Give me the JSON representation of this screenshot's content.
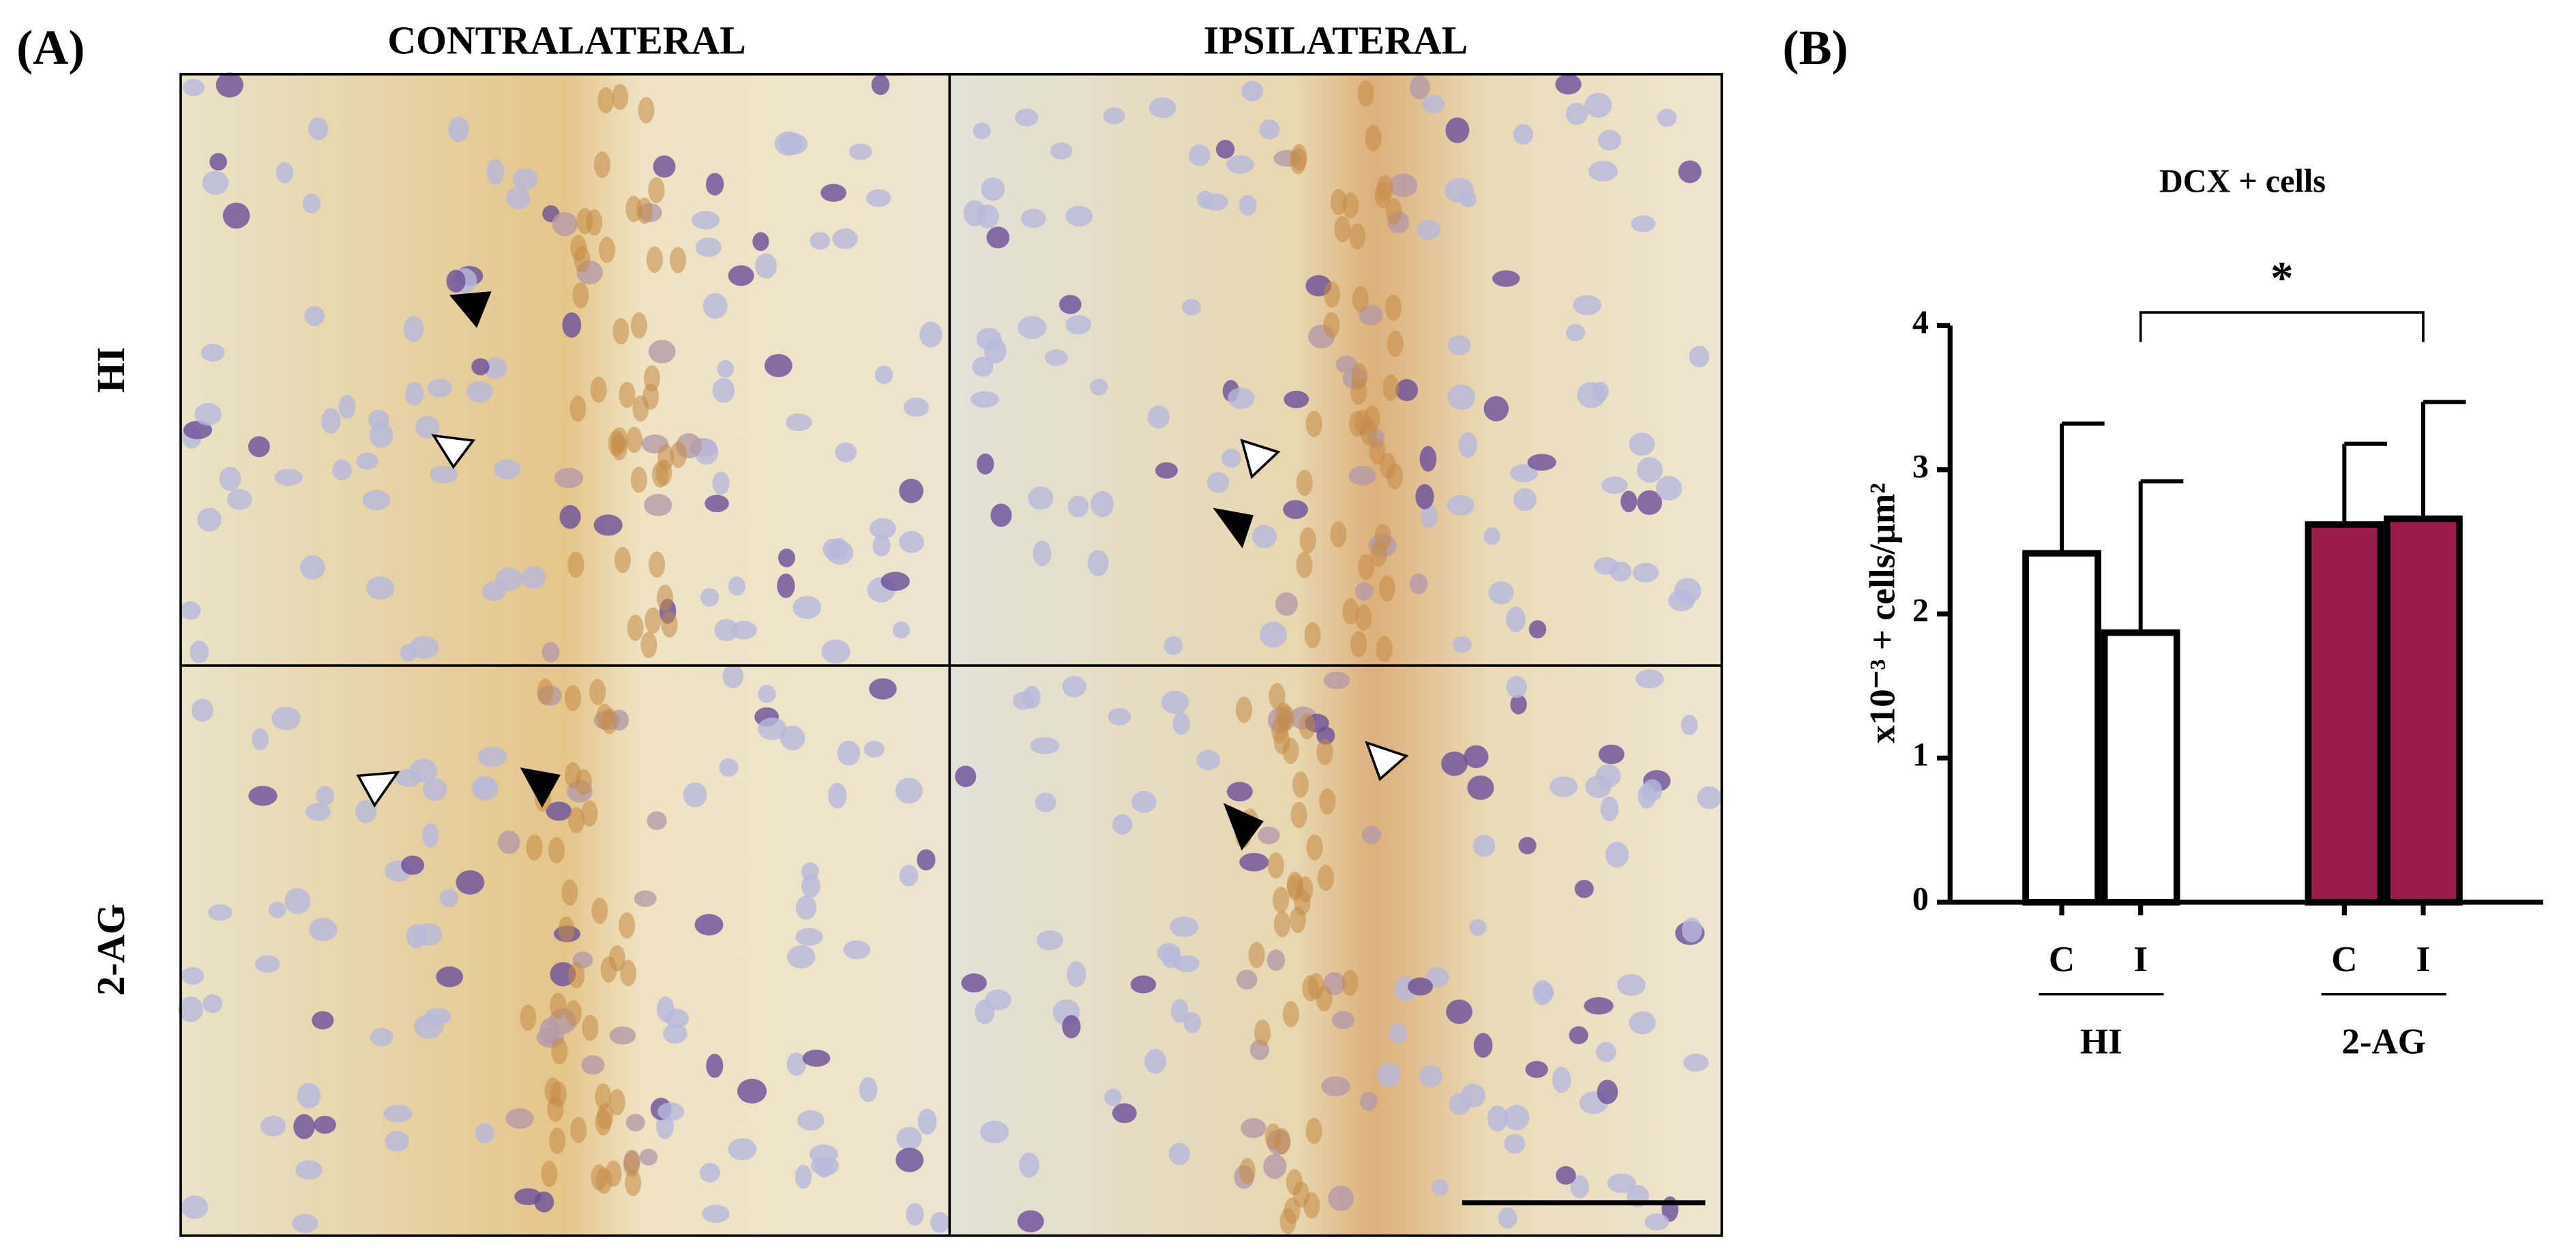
{
  "panel_a": {
    "label": "(A)",
    "columns": [
      "CONTRALATERAL",
      "IPSILATERAL"
    ],
    "rows": [
      "HI",
      "2-AG"
    ]
  },
  "chart_data": {
    "type": "bar",
    "panel_label": "(B)",
    "title": "DCX + cells",
    "y_label": "x10⁻³ + cells/μm²",
    "categories": [
      "C",
      "I"
    ],
    "series": [
      {
        "name": "HI",
        "color": "#ffffff",
        "values": [
          2.42,
          1.87
        ],
        "errors": [
          0.9,
          1.05
        ]
      },
      {
        "name": "2-AG",
        "color": "#9b1b4b",
        "values": [
          2.62,
          2.66
        ],
        "errors": [
          0.56,
          0.81
        ]
      }
    ],
    "ylim": [
      0,
      4
    ],
    "yticks": [
      0,
      1,
      2,
      3,
      4
    ],
    "annotation": "*"
  }
}
